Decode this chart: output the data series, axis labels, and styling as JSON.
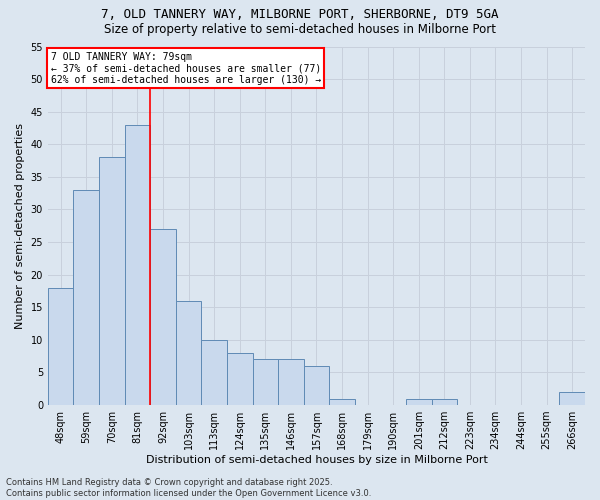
{
  "title1": "7, OLD TANNERY WAY, MILBORNE PORT, SHERBORNE, DT9 5GA",
  "title2": "Size of property relative to semi-detached houses in Milborne Port",
  "xlabel": "Distribution of semi-detached houses by size in Milborne Port",
  "ylabel": "Number of semi-detached properties",
  "categories": [
    "48sqm",
    "59sqm",
    "70sqm",
    "81sqm",
    "92sqm",
    "103sqm",
    "113sqm",
    "124sqm",
    "135sqm",
    "146sqm",
    "157sqm",
    "168sqm",
    "179sqm",
    "190sqm",
    "201sqm",
    "212sqm",
    "223sqm",
    "234sqm",
    "244sqm",
    "255sqm",
    "266sqm"
  ],
  "values": [
    18,
    33,
    38,
    43,
    27,
    16,
    10,
    8,
    7,
    7,
    6,
    1,
    0,
    0,
    1,
    1,
    0,
    0,
    0,
    0,
    2
  ],
  "bar_color": "#c9d9ed",
  "bar_edge_color": "#5f8ab5",
  "vline_index": 3,
  "vline_color": "red",
  "annotation_title": "7 OLD TANNERY WAY: 79sqm",
  "annotation_line1": "← 37% of semi-detached houses are smaller (77)",
  "annotation_line2": "62% of semi-detached houses are larger (130) →",
  "annotation_box_color": "white",
  "annotation_edge_color": "red",
  "ylim": [
    0,
    55
  ],
  "yticks": [
    0,
    5,
    10,
    15,
    20,
    25,
    30,
    35,
    40,
    45,
    50,
    55
  ],
  "grid_color": "#c8d0dc",
  "background_color": "#dce6f0",
  "footnote": "Contains HM Land Registry data © Crown copyright and database right 2025.\nContains public sector information licensed under the Open Government Licence v3.0.",
  "title_fontsize": 9,
  "subtitle_fontsize": 8.5,
  "xlabel_fontsize": 8,
  "ylabel_fontsize": 8,
  "tick_fontsize": 7,
  "annot_fontsize": 7
}
